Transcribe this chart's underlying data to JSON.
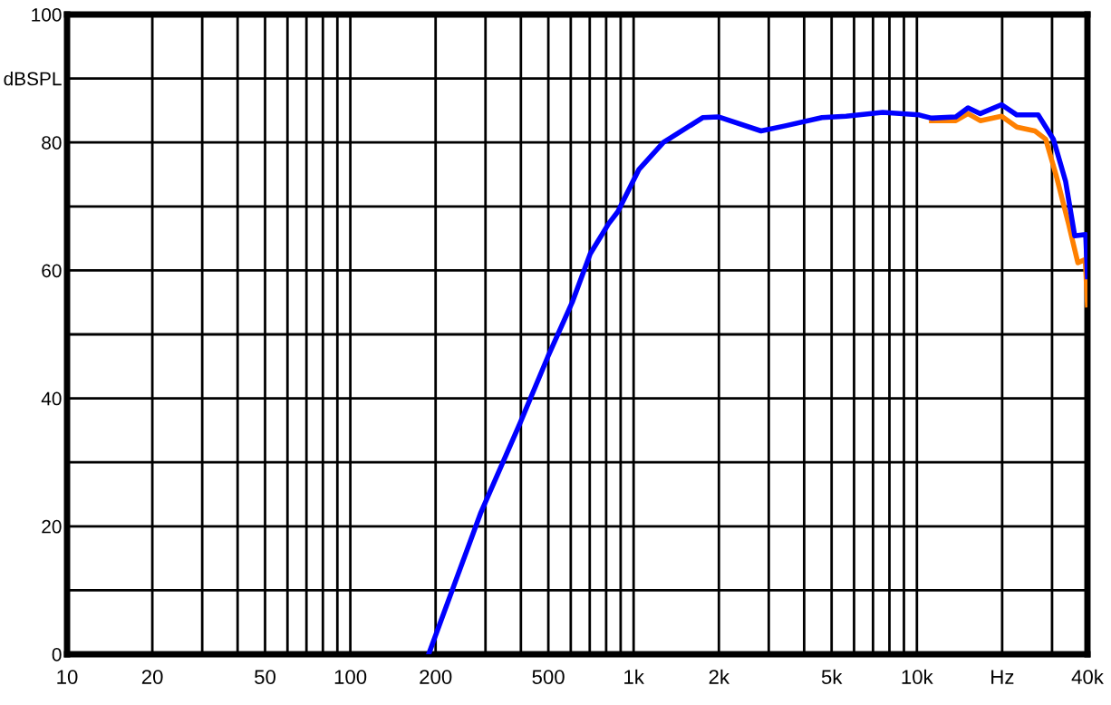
{
  "chart_data": {
    "type": "line",
    "log": "x",
    "xlim": [
      10,
      40000
    ],
    "ylim": [
      0,
      100
    ],
    "xticks": [
      10,
      20,
      50,
      100,
      200,
      500,
      {
        "value": 1000,
        "label": "1k"
      },
      {
        "value": 2000,
        "label": "2k"
      },
      {
        "value": 5000,
        "label": "5k"
      },
      {
        "value": 10000,
        "label": "10k"
      },
      {
        "value": 20000,
        "label": "Hz"
      },
      {
        "value": 40000,
        "label": "40k"
      }
    ],
    "yticks": [
      0,
      {
        "value": 10,
        "label": null
      },
      20,
      {
        "value": 30,
        "label": null
      },
      40,
      {
        "value": 50,
        "label": null
      },
      60,
      {
        "value": 70,
        "label": null
      },
      80,
      {
        "value": 90,
        "label": "dBSPL"
      },
      100
    ],
    "grid": true,
    "marker": "none",
    "line_style": "solid",
    "series": [
      {
        "color": "#ff8000",
        "x": [
          11260,
          13720,
          15150,
          16740,
          19900,
          22540,
          26100,
          28500,
          31000,
          34300,
          37000,
          39300,
          40000
        ],
        "values": [
          83.4,
          83.4,
          84.5,
          83.4,
          84.1,
          82.4,
          81.8,
          80.5,
          74.9,
          67.3,
          61.2,
          61.7,
          54.6
        ]
      },
      {
        "color": "#0000ff",
        "x": [
          189,
          288,
          398,
          498,
          607,
          703,
          816,
          880,
          1045,
          1274,
          1758,
          1990,
          2818,
          3428,
          4620,
          5625,
          7570,
          10190,
          11260,
          13720,
          15150,
          16740,
          19900,
          22540,
          26800,
          30340,
          33500,
          36070,
          39440,
          40000
        ],
        "values": [
          0,
          22,
          36.2,
          46.5,
          55,
          62.6,
          67.3,
          69.2,
          75.8,
          80,
          83.9,
          84,
          81.8,
          82.6,
          83.9,
          84.1,
          84.7,
          84.3,
          83.8,
          84,
          85.4,
          84.5,
          85.9,
          84.3,
          84.3,
          80.5,
          73.9,
          65.4,
          65.6,
          59
        ]
      }
    ]
  }
}
